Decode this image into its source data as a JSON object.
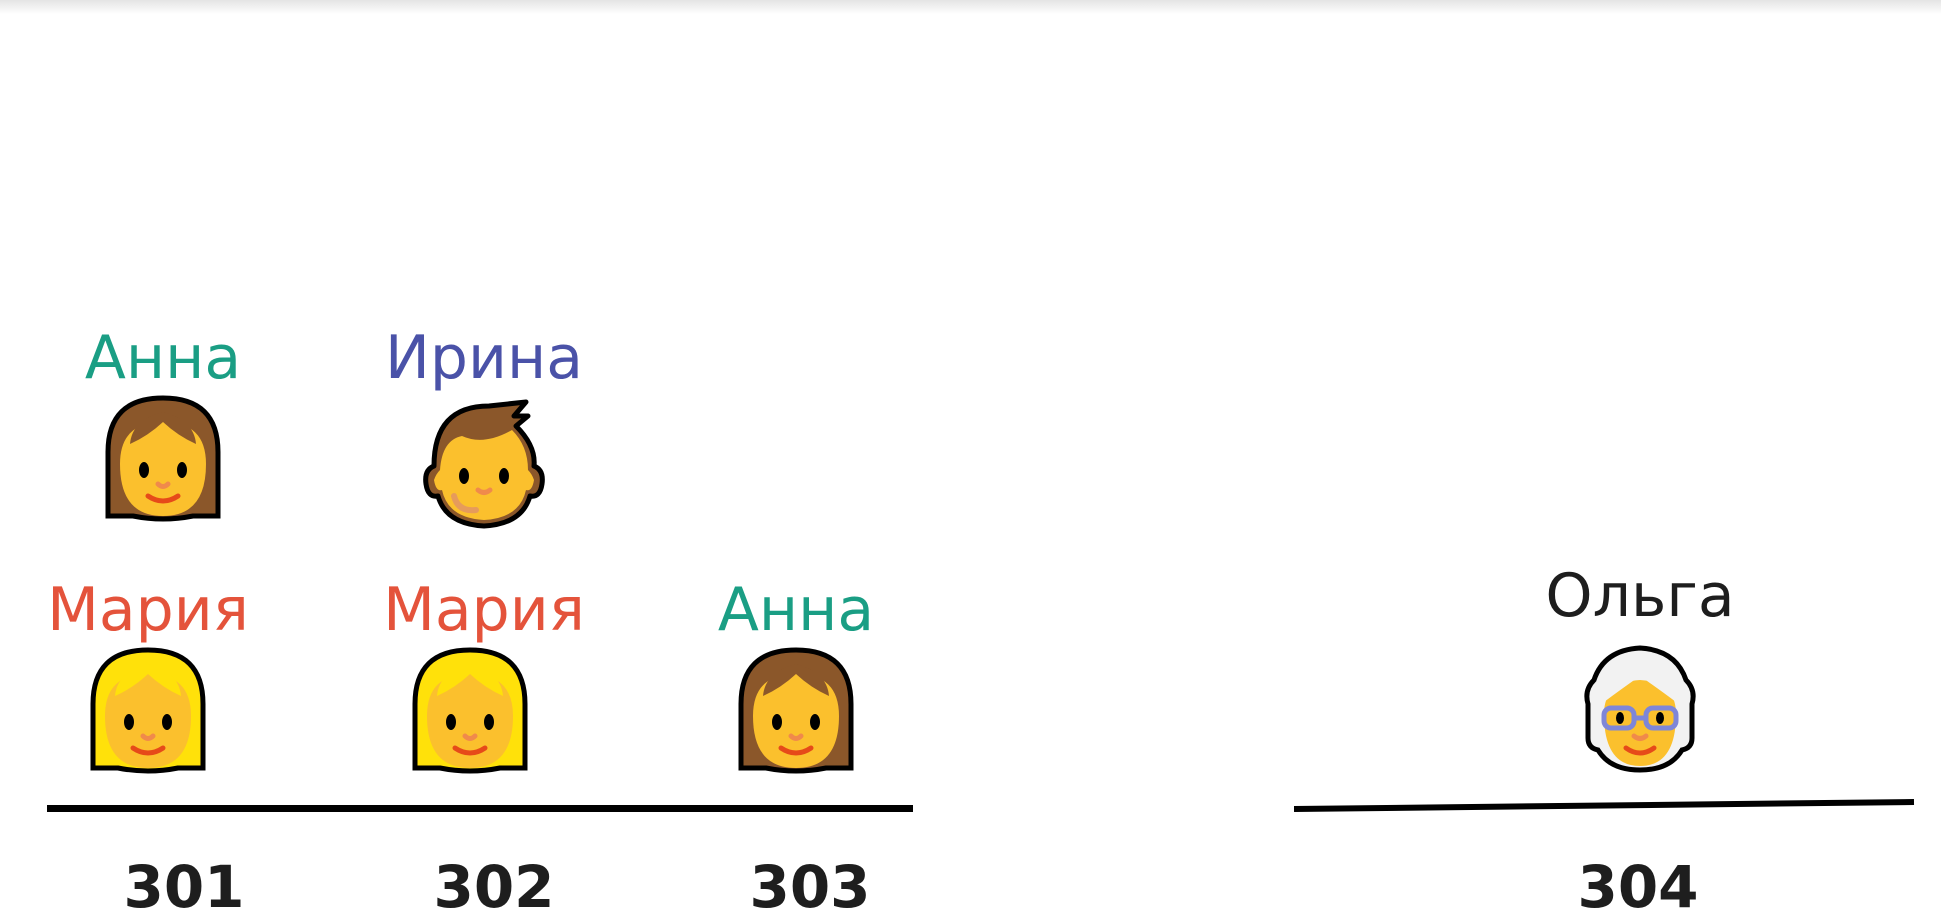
{
  "colors": {
    "anna": "#1a9e84",
    "irina": "#4a52a8",
    "maria": "#e4533b",
    "olga": "#1e1e1e",
    "floor": "#000000",
    "room_label": "#1e1e1e"
  },
  "rooms": [
    {
      "number": "301",
      "residents": [
        {
          "name": "Мария",
          "icon": "blonde-woman-icon"
        },
        {
          "name": "Анна",
          "icon": "brunette-woman-icon"
        }
      ]
    },
    {
      "number": "302",
      "residents": [
        {
          "name": "Мария",
          "icon": "blonde-woman-icon"
        },
        {
          "name": "Ирина",
          "icon": "child-face-icon"
        }
      ]
    },
    {
      "number": "303",
      "residents": [
        {
          "name": "Анна",
          "icon": "brunette-woman-icon"
        }
      ]
    },
    {
      "number": "304",
      "residents": [
        {
          "name": "Ольга",
          "icon": "old-woman-icon"
        }
      ]
    }
  ]
}
